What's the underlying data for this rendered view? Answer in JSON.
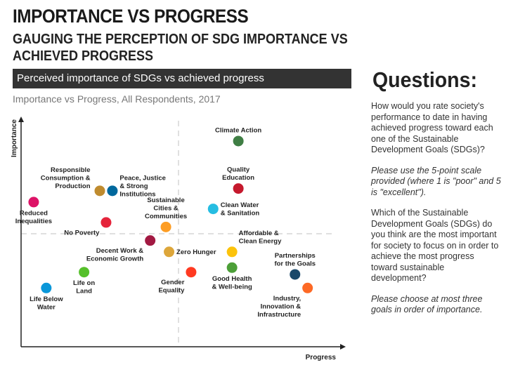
{
  "header": {
    "title": "IMPORTANCE VS PROGRESS",
    "subtitle": "GAUGING THE PERCEPTION OF SDG IMPORTANCE VS ACHIEVED PROGRESS",
    "bar_label": "Perceived importance of SDGs vs achieved progress",
    "caption": "Importance vs Progress, All Respondents, 2017"
  },
  "questions": {
    "title": "Questions:",
    "q1": "How would you rate society's performance to date in having achieved progress toward each one of the Sustainable Development Goals (SDGs)?",
    "q1_note": "Please use the 5-point scale provided (where 1 is \"poor\" and 5 is \"excellent\").",
    "q2": "Which of the Sustainable Development Goals (SDGs) do you think are the most important for society to focus on in order to achieve the most progress toward sustainable development?",
    "q2_note": "Please choose at most three goals in order of importance."
  },
  "chart_data": {
    "type": "scatter",
    "xlabel": "Progress",
    "ylabel": "Importance",
    "xlim": [
      0,
      100
    ],
    "ylim": [
      0,
      100
    ],
    "grid": false,
    "quadrant_lines": {
      "x": 50,
      "y": 50
    },
    "points": [
      {
        "name": "Climate Action",
        "lines": [
          "Climate Action"
        ],
        "x": 69,
        "y": 91,
        "color": "#3f7e44",
        "label_pos": "above"
      },
      {
        "name": "Quality Education",
        "lines": [
          "Quality",
          "Education"
        ],
        "x": 69,
        "y": 70,
        "color": "#c5192d",
        "label_pos": "above"
      },
      {
        "name": "Responsible Consumption & Production",
        "lines": [
          "Responsible",
          "Consumption &",
          "Production"
        ],
        "x": 25,
        "y": 69,
        "color": "#bf8b2e",
        "label_pos": "left"
      },
      {
        "name": "Peace, Justice & Strong Institutions",
        "lines": [
          "Peace, Justice",
          "& Strong",
          "Institutions"
        ],
        "x": 29,
        "y": 69,
        "color": "#00689d",
        "label_pos": "right"
      },
      {
        "name": "Reduced Inequalities",
        "lines": [
          "Reduced",
          "Inequalities"
        ],
        "x": 4,
        "y": 64,
        "color": "#dd1367",
        "label_pos": "below"
      },
      {
        "name": "Clean Water & Sanitation",
        "lines": [
          "Clean Water",
          "& Sanitation"
        ],
        "x": 61,
        "y": 61,
        "color": "#26bde2",
        "label_pos": "right"
      },
      {
        "name": "Sustainable Cities & Communities",
        "lines": [
          "Sustainable",
          "Cities &",
          "Communities"
        ],
        "x": 46,
        "y": 53,
        "color": "#fd9d24",
        "label_pos": "above"
      },
      {
        "name": "No Poverty",
        "lines": [
          "No Poverty"
        ],
        "x": 27,
        "y": 55,
        "color": "#e5243b",
        "label_pos": "below-left"
      },
      {
        "name": "Decent Work & Economic Growth",
        "lines": [
          "Decent Work &",
          "Economic Growth"
        ],
        "x": 41,
        "y": 47,
        "color": "#a21942",
        "label_pos": "below-left"
      },
      {
        "name": "Zero Hunger",
        "lines": [
          "Zero Hunger"
        ],
        "x": 47,
        "y": 42,
        "color": "#dda63a",
        "label_pos": "right"
      },
      {
        "name": "Affordable & Clean Energy",
        "lines": [
          "Affordable &",
          "Clean Energy"
        ],
        "x": 67,
        "y": 42,
        "color": "#fcc30b",
        "label_pos": "above-right"
      },
      {
        "name": "Good Health & Well-being",
        "lines": [
          "Good Health",
          "& Well-being"
        ],
        "x": 67,
        "y": 35,
        "color": "#4c9f38",
        "label_pos": "below"
      },
      {
        "name": "Gender Equality",
        "lines": [
          "Gender",
          "Equality"
        ],
        "x": 54,
        "y": 33,
        "color": "#ff3a21",
        "label_pos": "below-left"
      },
      {
        "name": "Life on Land",
        "lines": [
          "Life on",
          "Land"
        ],
        "x": 20,
        "y": 33,
        "color": "#56c02b",
        "label_pos": "below"
      },
      {
        "name": "Partnerships for the Goals",
        "lines": [
          "Partnerships",
          "for the Goals"
        ],
        "x": 87,
        "y": 32,
        "color": "#19486a",
        "label_pos": "above"
      },
      {
        "name": "Industry, Innovation & Infrastructure",
        "lines": [
          "Industry,",
          "Innovation &",
          "Infrastructure"
        ],
        "x": 91,
        "y": 26,
        "color": "#fd6925",
        "label_pos": "below-left"
      },
      {
        "name": "Life Below Water",
        "lines": [
          "Life Below",
          "Water"
        ],
        "x": 8,
        "y": 26,
        "color": "#0a97d9",
        "label_pos": "below"
      }
    ]
  }
}
